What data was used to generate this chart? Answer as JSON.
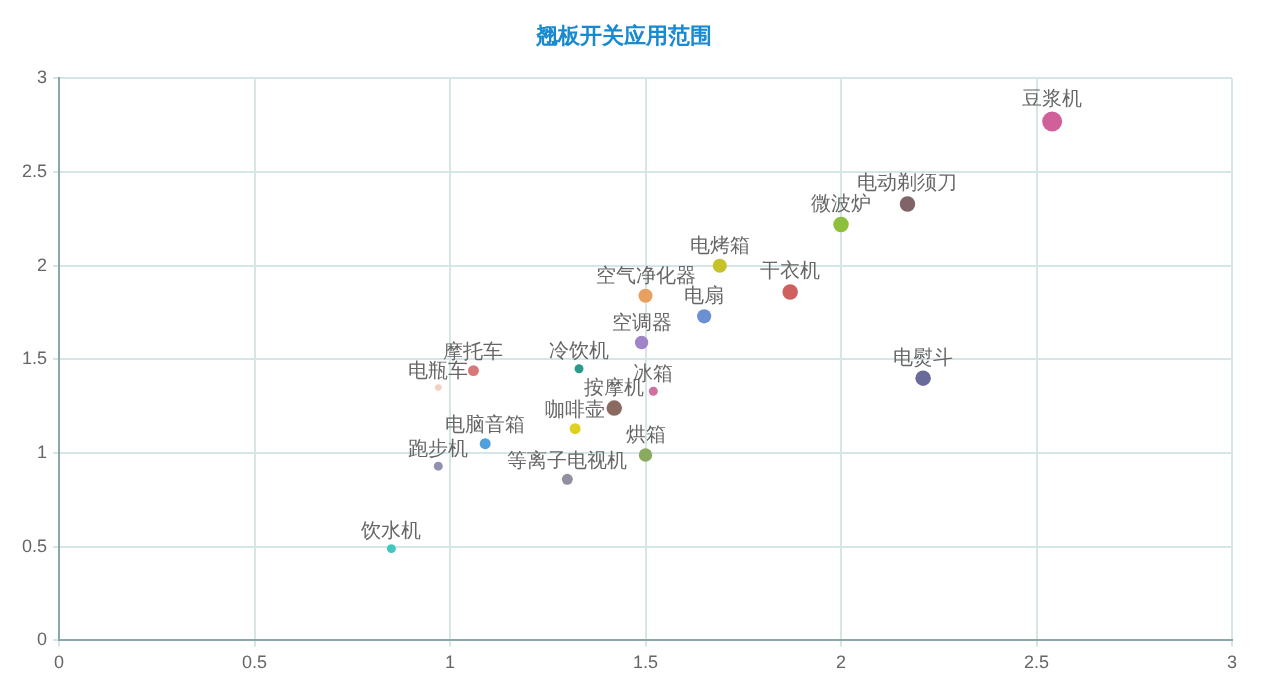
{
  "chart_data": {
    "type": "bubble",
    "title": "翘板开关应用范围",
    "xlim": [
      0,
      3
    ],
    "ylim": [
      0,
      3
    ],
    "xticks": [
      0,
      0.5,
      1,
      1.5,
      2,
      2.5,
      3
    ],
    "yticks": [
      0,
      0.5,
      1,
      1.5,
      2,
      2.5,
      3
    ],
    "grid": true,
    "legend": false,
    "series": [
      {
        "name": "豆浆机",
        "color": "#d0609a",
        "x": [
          2.54
        ],
        "values": [
          2.77
        ],
        "sizes": [
          1
        ]
      },
      {
        "name": "电动剃须刀",
        "color": "#7f6468",
        "x": [
          2.17
        ],
        "values": [
          2.33
        ],
        "sizes": [
          0.6
        ]
      },
      {
        "name": "微波炉",
        "color": "#8cbf3a",
        "x": [
          2.0
        ],
        "values": [
          2.22
        ],
        "sizes": [
          0.6
        ]
      },
      {
        "name": "电烤箱",
        "color": "#c8c22a",
        "x": [
          1.69
        ],
        "values": [
          2.0
        ],
        "sizes": [
          0.5
        ]
      },
      {
        "name": "干衣机",
        "color": "#d06060",
        "x": [
          1.87
        ],
        "values": [
          1.86
        ],
        "sizes": [
          0.6
        ]
      },
      {
        "name": "电扇",
        "color": "#6b8fd0",
        "x": [
          1.65
        ],
        "values": [
          1.73
        ],
        "sizes": [
          0.5
        ]
      },
      {
        "name": "空气净化器",
        "color": "#e8a060",
        "x": [
          1.5
        ],
        "values": [
          1.84
        ],
        "sizes": [
          0.5
        ]
      },
      {
        "name": "空调器",
        "color": "#a084c8",
        "x": [
          1.49
        ],
        "values": [
          1.59
        ],
        "sizes": [
          0.45
        ]
      },
      {
        "name": "电熨斗",
        "color": "#6a6a9a",
        "x": [
          2.21
        ],
        "values": [
          1.4
        ],
        "sizes": [
          0.6
        ]
      },
      {
        "name": "摩托车",
        "color": "#d87878",
        "x": [
          1.06
        ],
        "values": [
          1.44
        ],
        "sizes": [
          0.3
        ]
      },
      {
        "name": "冷饮机",
        "color": "#2a9a8a",
        "x": [
          1.33
        ],
        "values": [
          1.45
        ],
        "sizes": [
          0.2
        ]
      },
      {
        "name": "电瓶车",
        "color": "#f0d0c0",
        "x": [
          0.97
        ],
        "values": [
          1.35
        ],
        "sizes": [
          0.11
        ]
      },
      {
        "name": "冰箱",
        "color": "#d070a0",
        "x": [
          1.52
        ],
        "values": [
          1.33
        ],
        "sizes": [
          0.2
        ]
      },
      {
        "name": "按摩机",
        "color": "#8a6a60",
        "x": [
          1.42
        ],
        "values": [
          1.24
        ],
        "sizes": [
          0.6
        ]
      },
      {
        "name": "咖啡壶",
        "color": "#e0d020",
        "x": [
          1.32
        ],
        "values": [
          1.13
        ],
        "sizes": [
          0.3
        ]
      },
      {
        "name": "电脑音箱",
        "color": "#50a0e0",
        "x": [
          1.09
        ],
        "values": [
          1.05
        ],
        "sizes": [
          0.3
        ]
      },
      {
        "name": "跑步机",
        "color": "#9090b0",
        "x": [
          0.97
        ],
        "values": [
          0.93
        ],
        "sizes": [
          0.2
        ]
      },
      {
        "name": "等离子电视机",
        "color": "#9090a0",
        "x": [
          1.3
        ],
        "values": [
          0.86
        ],
        "sizes": [
          0.3
        ]
      },
      {
        "name": "烘箱",
        "color": "#8aaa60",
        "x": [
          1.5
        ],
        "values": [
          0.99
        ],
        "sizes": [
          0.45
        ]
      },
      {
        "name": "饮水机",
        "color": "#40c8c0",
        "x": [
          0.85
        ],
        "values": [
          0.49
        ],
        "sizes": [
          0.2
        ]
      }
    ]
  }
}
